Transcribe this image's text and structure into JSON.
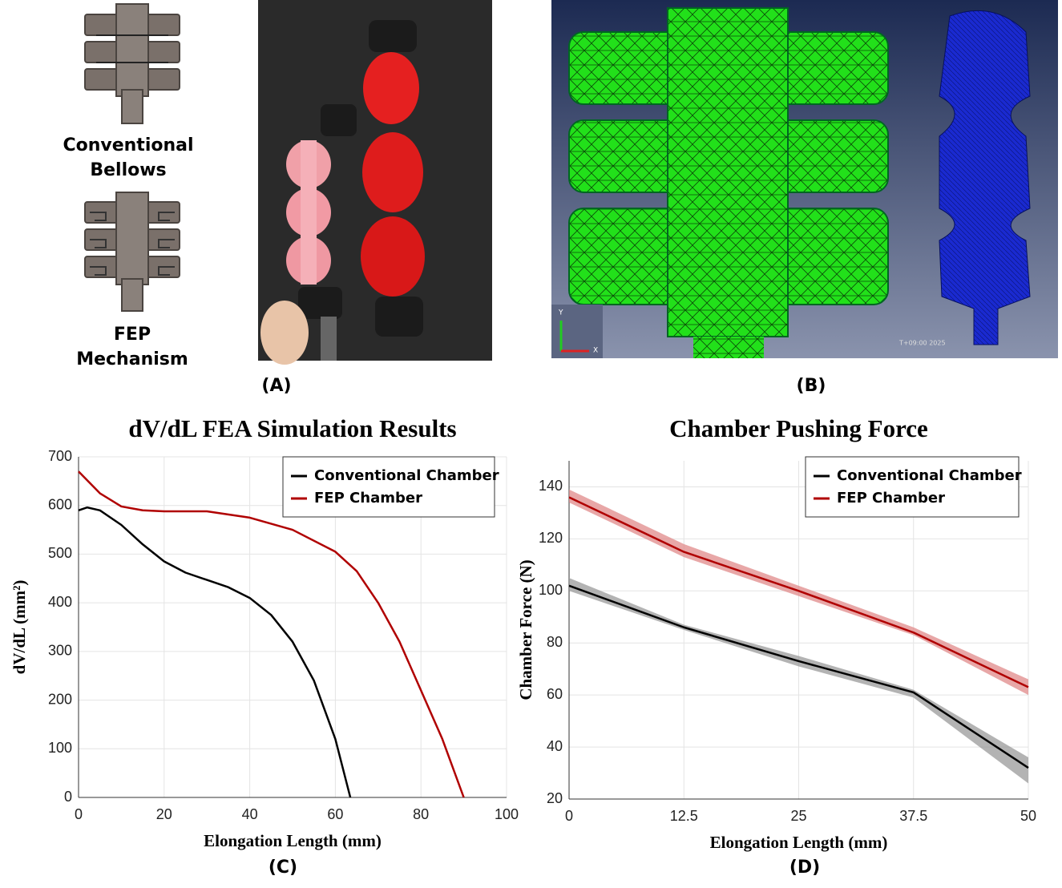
{
  "panels": {
    "a": {
      "label": "(A)",
      "bellows_caption": "Conventional\nBellows",
      "fep_caption": "FEP\nMechanism"
    },
    "b": {
      "label": "(B)",
      "axis_y": "Y",
      "axis_x": "X",
      "timestamp": "T+09:00 2025"
    }
  },
  "chart_data": [
    {
      "type": "line",
      "title": "dV/dL FEA Simulation Results",
      "xlabel": "Elongation Length (mm)",
      "ylabel": "dV/dL (mm²)",
      "panel_label": "(C)",
      "xlim": [
        0,
        100
      ],
      "ylim": [
        0,
        700
      ],
      "xticks": [
        0,
        20,
        40,
        60,
        80,
        100
      ],
      "yticks": [
        0,
        100,
        200,
        300,
        400,
        500,
        600,
        700
      ],
      "grid": true,
      "legend": "upper right",
      "series": [
        {
          "name": "Conventional Chamber",
          "color": "#000000",
          "x": [
            0,
            2,
            5,
            10,
            15,
            20,
            25,
            30,
            35,
            40,
            45,
            50,
            55,
            60,
            63.5
          ],
          "values": [
            590,
            596,
            590,
            560,
            520,
            485,
            462,
            447,
            432,
            410,
            375,
            320,
            240,
            120,
            0
          ]
        },
        {
          "name": "FEP Chamber",
          "color": "#b00000",
          "x": [
            0,
            5,
            10,
            15,
            20,
            30,
            40,
            50,
            60,
            65,
            70,
            75,
            80,
            85,
            90
          ],
          "values": [
            670,
            625,
            598,
            590,
            588,
            588,
            575,
            550,
            505,
            465,
            400,
            320,
            220,
            120,
            0
          ]
        }
      ]
    },
    {
      "type": "band-line",
      "title": "Chamber Pushing Force",
      "xlabel": "Elongation Length (mm)",
      "ylabel": "Chamber Force (N)",
      "panel_label": "(D)",
      "xlim": [
        0,
        50
      ],
      "ylim": [
        20,
        150
      ],
      "xticks": [
        0,
        12.5,
        25,
        37.5,
        50
      ],
      "yticks": [
        20,
        40,
        60,
        80,
        100,
        120,
        140
      ],
      "grid": true,
      "legend": "upper right",
      "x": [
        0,
        12.5,
        25,
        37.5,
        50
      ],
      "series": [
        {
          "name": "Conventional Chamber",
          "color": "#000000",
          "band_color": "#999999",
          "values": [
            102,
            86,
            73,
            61,
            32
          ],
          "lower": [
            100,
            85,
            71,
            59,
            26
          ],
          "upper": [
            105,
            87,
            75,
            62,
            36
          ]
        },
        {
          "name": "FEP Chamber",
          "color": "#b00000",
          "band_color": "#e08a8a",
          "values": [
            136,
            115,
            100,
            84,
            63
          ],
          "lower": [
            134,
            113,
            98,
            83,
            60
          ],
          "upper": [
            139,
            118,
            102,
            86,
            66
          ]
        }
      ]
    }
  ]
}
